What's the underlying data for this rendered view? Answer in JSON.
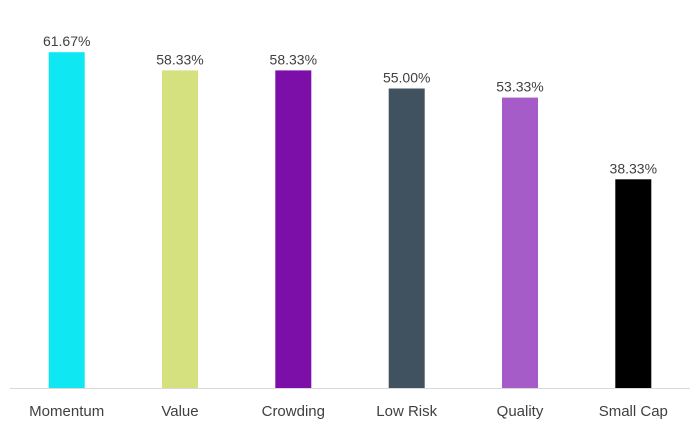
{
  "chart_data": {
    "type": "bar",
    "title": "",
    "xlabel": "",
    "ylabel": "",
    "ylim": [
      0,
      62
    ],
    "grid": false,
    "legend": "none",
    "categories": [
      "Momentum",
      "Value",
      "Crowding",
      "Low Risk",
      "Quality",
      "Small Cap"
    ],
    "values": [
      61.67,
      58.33,
      58.33,
      55.0,
      53.33,
      38.33
    ],
    "value_labels": [
      "61.67%",
      "58.33%",
      "58.33%",
      "55.00%",
      "53.33%",
      "38.33%"
    ],
    "bar_colors": [
      "#0FE8F2",
      "#D4E17E",
      "#7B0FA8",
      "#405260",
      "#A65CC8",
      "#000000"
    ],
    "axis_color": "#D9D9D9",
    "text_color": "#404040"
  }
}
